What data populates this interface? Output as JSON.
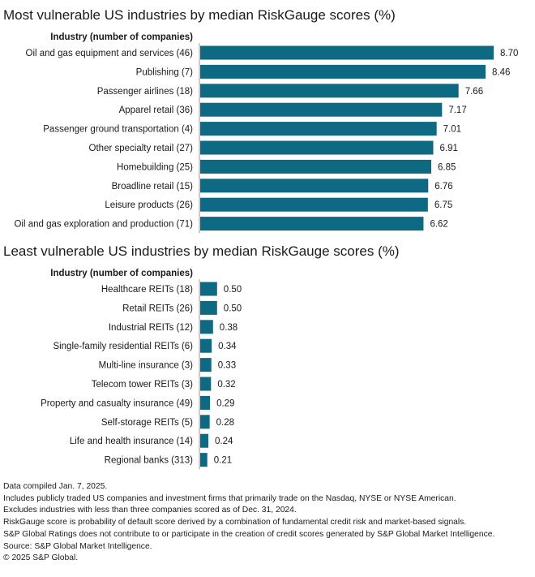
{
  "chart_data": [
    {
      "type": "bar",
      "orientation": "horizontal",
      "title": "Most vulnerable US industries by median RiskGauge scores (%)",
      "category_header": "Industry (number of companies)",
      "categories": [
        "Oil and gas equipment and services (46)",
        "Publishing (7)",
        "Passenger airlines (18)",
        "Apparel retail (36)",
        "Passenger ground transportation (4)",
        "Other specialty retail (27)",
        "Homebuilding (25)",
        "Broadline retail (15)",
        "Leisure products (26)",
        "Oil and gas exploration and production (71)"
      ],
      "values": [
        8.7,
        8.46,
        7.66,
        7.17,
        7.01,
        6.91,
        6.85,
        6.76,
        6.75,
        6.62
      ],
      "value_labels": [
        "8.70",
        "8.46",
        "7.66",
        "7.17",
        "7.01",
        "6.91",
        "6.85",
        "6.76",
        "6.75",
        "6.62"
      ],
      "xlim": [
        0,
        8.7
      ],
      "grid": false
    },
    {
      "type": "bar",
      "orientation": "horizontal",
      "title": "Least vulnerable US industries by median RiskGauge scores (%)",
      "category_header": "Industry (number of companies)",
      "categories": [
        "Healthcare REITs (18)",
        "Retail REITs (26)",
        "Industrial REITs (12)",
        "Single-family residential REITs (6)",
        "Multi-line insurance (3)",
        "Telecom tower REITs (3)",
        "Property and casualty insurance (49)",
        "Self-storage REITs (5)",
        "Life and health insurance (14)",
        "Regional banks (313)"
      ],
      "values": [
        0.5,
        0.5,
        0.38,
        0.34,
        0.33,
        0.32,
        0.29,
        0.28,
        0.24,
        0.21
      ],
      "value_labels": [
        "0.50",
        "0.50",
        "0.38",
        "0.34",
        "0.33",
        "0.32",
        "0.29",
        "0.28",
        "0.24",
        "0.21"
      ],
      "xlim": [
        0,
        8.7
      ],
      "grid": false
    }
  ],
  "colors": {
    "bar": "#0e6a82"
  },
  "notes": [
    "Data compiled Jan. 7, 2025.",
    "Includes publicly traded US companies and investment firms that primarily trade on the Nasdaq, NYSE or NYSE American.",
    "Excludes industries with less than three companies scored as of Dec. 31, 2024.",
    "RiskGauge score is probability of default score derived by a combination of fundamental credit risk and market-based signals.",
    "S&P Global Ratings does not contribute to or participate in the creation of credit scores generated by S&P Global Market Intelligence.",
    "Source: S&P Global Market Intelligence.",
    "© 2025 S&P Global."
  ]
}
